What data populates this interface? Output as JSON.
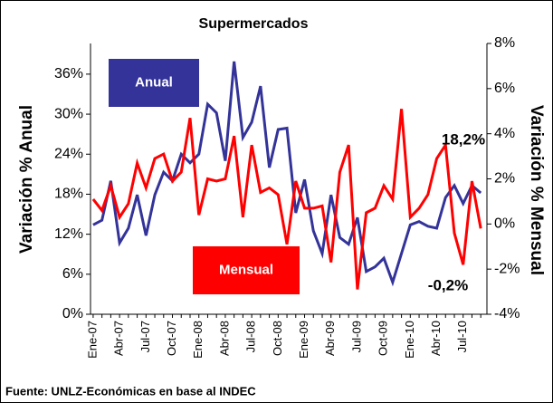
{
  "chart_data": {
    "type": "line",
    "title": "Supermercados",
    "y_label": "Variación % Anual",
    "y2_label": "Variación % Mensual",
    "source": "Fuente: UNLZ-Económicas en base al INDEC",
    "categories": [
      "Ene-07",
      null,
      null,
      "Abr-07",
      null,
      null,
      "Jul-07",
      null,
      null,
      "Oct-07",
      null,
      null,
      "Ene-08",
      null,
      null,
      "Abr-08",
      null,
      null,
      "Jul-08",
      null,
      null,
      "Oct-08",
      null,
      null,
      "Ene-09",
      null,
      null,
      "Abr-09",
      null,
      null,
      "Jul-09",
      null,
      null,
      "Oct-09",
      null,
      null,
      "Ene-10",
      null,
      null,
      "Abr-10",
      null,
      null,
      "Jul-10",
      null,
      null
    ],
    "series": [
      {
        "name": "Anual",
        "color": "#333399",
        "axis": "y",
        "values": [
          13.4,
          14.1,
          20.0,
          10.7,
          12.9,
          17.9,
          11.8,
          17.9,
          21.3,
          20.0,
          24.0,
          22.7,
          24.0,
          31.5,
          30.2,
          23.0,
          37.9,
          26.5,
          28.8,
          34.2,
          22.0,
          27.7,
          27.9,
          15.2,
          20.2,
          12.5,
          9.1,
          17.9,
          11.5,
          10.5,
          14.5,
          6.4,
          7.1,
          8.4,
          4.8,
          9.1,
          13.4,
          13.9,
          13.2,
          12.9,
          17.5,
          19.3,
          16.6,
          19.3,
          18.2
        ]
      },
      {
        "name": "Mensual",
        "color": "#ff0000",
        "axis": "y2",
        "values": [
          1.1,
          0.6,
          1.7,
          0.3,
          0.9,
          2.7,
          1.6,
          2.9,
          3.1,
          1.9,
          2.3,
          4.7,
          0.4,
          2.0,
          1.9,
          2.0,
          3.9,
          0.3,
          3.5,
          1.4,
          1.6,
          1.3,
          -0.9,
          1.9,
          0.7,
          0.7,
          0.8,
          -1.7,
          2.3,
          3.5,
          -2.9,
          0.5,
          0.7,
          1.7,
          1.1,
          5.1,
          0.3,
          0.7,
          1.3,
          2.9,
          3.5,
          -0.4,
          -1.8,
          1.9,
          -0.2
        ]
      }
    ],
    "annotations": [
      "18,2%",
      "-0,2%"
    ],
    "ylim": [
      0,
      40.6
    ],
    "yticks": [
      {
        "value": 0,
        "label": "0%"
      },
      {
        "value": 6,
        "label": "6%"
      },
      {
        "value": 12,
        "label": "12%"
      },
      {
        "value": 18,
        "label": "18%"
      },
      {
        "value": 24,
        "label": "24%"
      },
      {
        "value": 30,
        "label": "30%"
      },
      {
        "value": 36,
        "label": "36%"
      }
    ],
    "y2lim": [
      -4,
      8
    ],
    "y2ticks": [
      {
        "value": -4,
        "label": "-4%"
      },
      {
        "value": -2,
        "label": "-2%"
      },
      {
        "value": 0,
        "label": "0%"
      },
      {
        "value": 2,
        "label": "2%"
      },
      {
        "value": 4,
        "label": "4%"
      },
      {
        "value": 6,
        "label": "6%"
      },
      {
        "value": 8,
        "label": "8%"
      }
    ]
  }
}
